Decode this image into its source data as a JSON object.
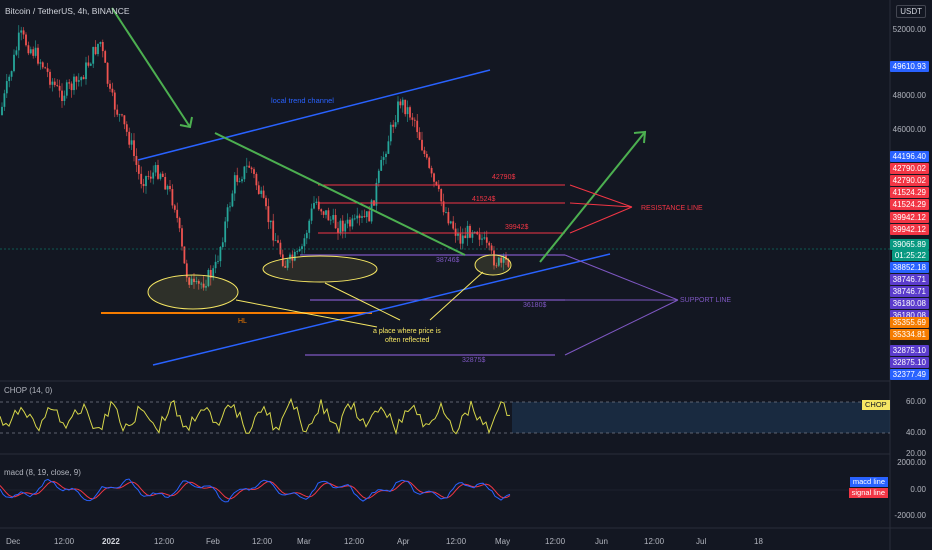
{
  "header": {
    "symbol": "Bitcoin / TetherUS, 4h, BINANCE",
    "currency": "USDT"
  },
  "price_axis": [
    {
      "label": "52000.00",
      "y": 30
    },
    {
      "label": "48000.00",
      "y": 96
    },
    {
      "label": "46000.00",
      "y": 130
    }
  ],
  "price_tags": [
    {
      "label": "49610.93",
      "color": "#2962ff",
      "y": 66
    },
    {
      "label": "44196.40",
      "color": "#2962ff",
      "y": 156
    },
    {
      "label": "42790.02",
      "color": "#f23645",
      "y": 168
    },
    {
      "label": "42790.02",
      "color": "#f23645",
      "y": 180
    },
    {
      "label": "41524.29",
      "color": "#f23645",
      "y": 192
    },
    {
      "label": "41524.29",
      "color": "#f23645",
      "y": 204
    },
    {
      "label": "39942.12",
      "color": "#f23645",
      "y": 217
    },
    {
      "label": "39942.12",
      "color": "#f23645",
      "y": 229
    },
    {
      "label": "39065.89",
      "color": "#089981",
      "y": 244
    },
    {
      "label": "01:25:22",
      "color": "#089981",
      "y": 255
    },
    {
      "label": "38852.18",
      "color": "#2962ff",
      "y": 267
    },
    {
      "label": "38746.71",
      "color": "#5b3ccc",
      "y": 279
    },
    {
      "label": "38746.71",
      "color": "#5b3ccc",
      "y": 291
    },
    {
      "label": "36180.08",
      "color": "#5b3ccc",
      "y": 303
    },
    {
      "label": "36180.08",
      "color": "#5b3ccc",
      "y": 315
    },
    {
      "label": "35355.69",
      "color": "#f57c00",
      "y": 322
    },
    {
      "label": "35334.81",
      "color": "#f57c00",
      "y": 334
    },
    {
      "label": "32875.10",
      "color": "#5b3ccc",
      "y": 350
    },
    {
      "label": "32875.10",
      "color": "#5b3ccc",
      "y": 362
    },
    {
      "label": "32377.49",
      "color": "#2962ff",
      "y": 374
    }
  ],
  "annotations": {
    "channel_label": "local trend channel",
    "level_1": "42790$",
    "level_2": "41524$",
    "level_3": "39942$",
    "level_4": "38746$",
    "level_5": "36180$",
    "level_6": "32875$",
    "resistance": "RESISTANCE LINE",
    "support": "SUPPORT LINE",
    "hl": "HL",
    "note_line1": "a place where price is",
    "note_line2": "often reflected"
  },
  "chop_pane": {
    "label": "CHOP (14, 0)",
    "tag": "CHOP",
    "tag_color": "#f5e663",
    "axis": [
      "60.00",
      "40.00",
      "20.00"
    ]
  },
  "macd_pane": {
    "label": "macd (8, 19, close, 9)",
    "axis": [
      "2000.00",
      "0.00",
      "-2000.00"
    ],
    "macd_tag": "macd line",
    "signal_tag": "signal line",
    "macd_color": "#2962ff",
    "signal_color": "#f23645"
  },
  "time_axis": [
    {
      "label": "Dec",
      "x": 12,
      "bold": false
    },
    {
      "label": "12:00",
      "x": 60,
      "bold": false
    },
    {
      "label": "2022",
      "x": 108,
      "bold": true
    },
    {
      "label": "12:00",
      "x": 160,
      "bold": false
    },
    {
      "label": "Feb",
      "x": 212,
      "bold": false
    },
    {
      "label": "12:00",
      "x": 258,
      "bold": false
    },
    {
      "label": "Mar",
      "x": 303,
      "bold": false
    },
    {
      "label": "12:00",
      "x": 350,
      "bold": false
    },
    {
      "label": "Apr",
      "x": 403,
      "bold": false
    },
    {
      "label": "12:00",
      "x": 452,
      "bold": false
    },
    {
      "label": "May",
      "x": 501,
      "bold": false
    },
    {
      "label": "12:00",
      "x": 551,
      "bold": false
    },
    {
      "label": "Jun",
      "x": 601,
      "bold": false
    },
    {
      "label": "12:00",
      "x": 650,
      "bold": false
    },
    {
      "label": "Jul",
      "x": 702,
      "bold": false
    },
    {
      "label": "18",
      "x": 760,
      "bold": false
    }
  ]
}
